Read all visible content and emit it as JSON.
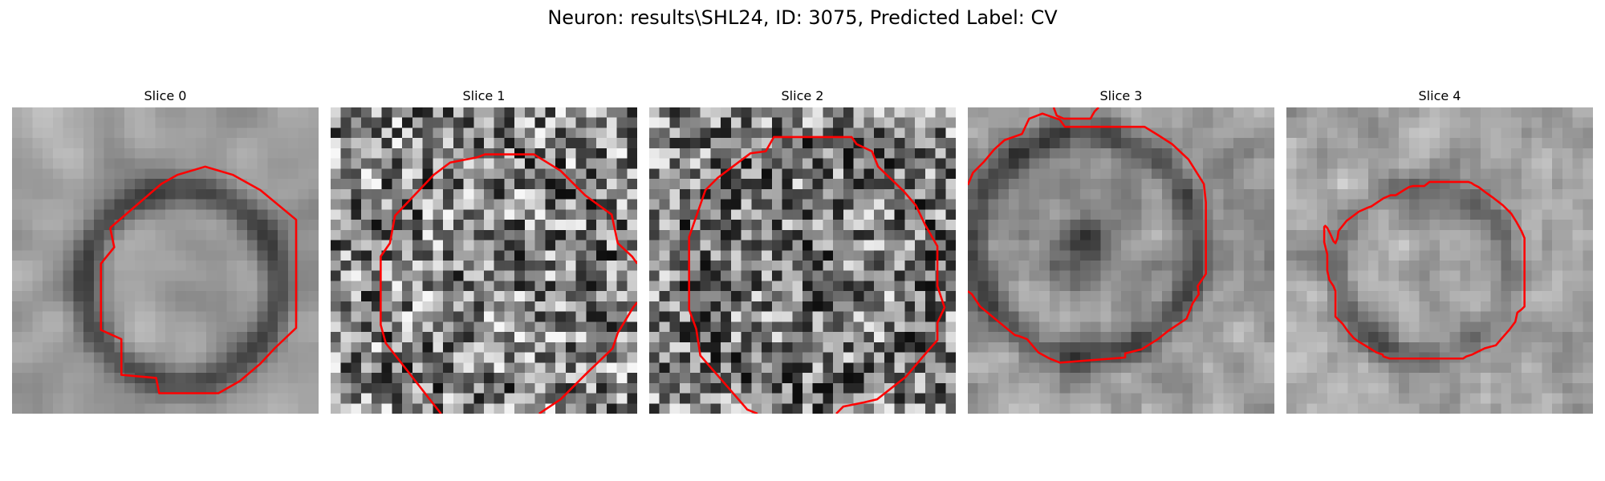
{
  "title": "Neuron: results\\SHL24, ID: 3075, Predicted Label: CV",
  "colors": {
    "contour": "#ff0000",
    "background": "#ffffff",
    "colormap": "gray"
  },
  "panels": [
    {
      "label": "Slice 0",
      "seed": 11
    },
    {
      "label": "Slice 1",
      "seed": 23
    },
    {
      "label": "Slice 2",
      "seed": 37
    },
    {
      "label": "Slice 3",
      "seed": 41
    },
    {
      "label": "Slice 4",
      "seed": 59
    }
  ]
}
